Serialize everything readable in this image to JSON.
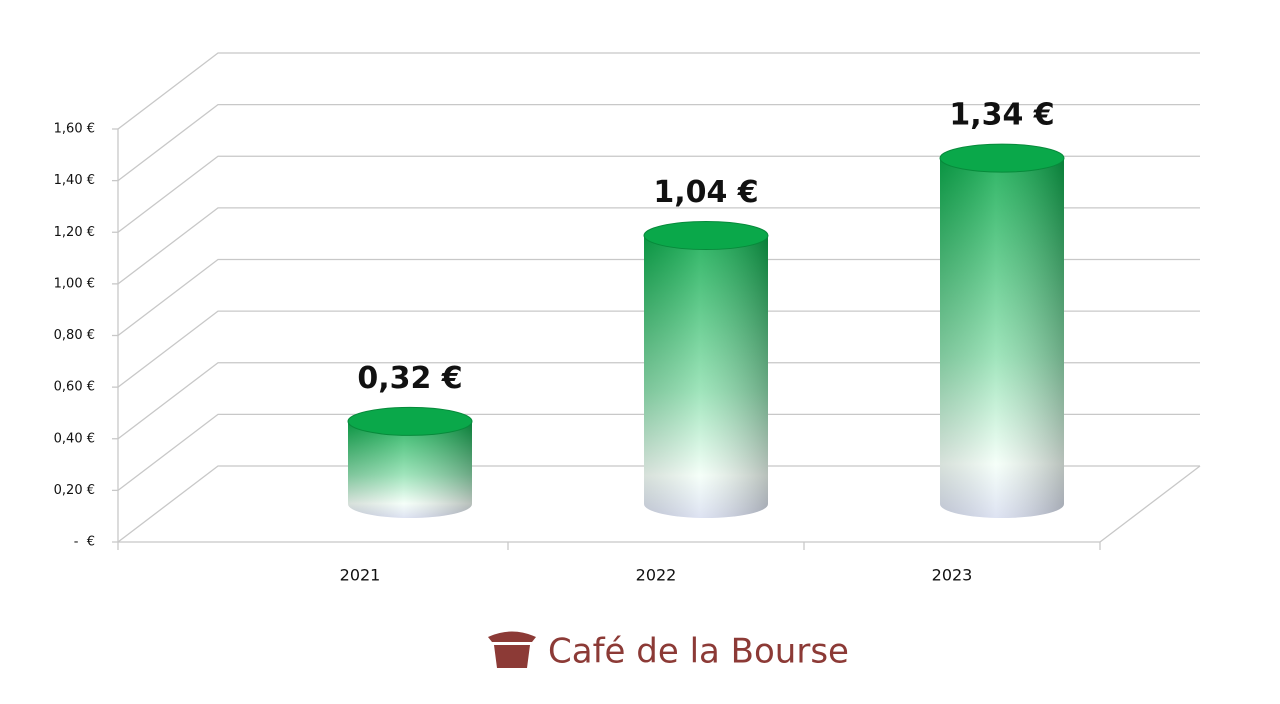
{
  "chart_data": {
    "type": "bar",
    "categories": [
      "2021",
      "2022",
      "2023"
    ],
    "values": [
      0.32,
      1.04,
      1.34
    ],
    "value_labels": [
      "0,32 €",
      "1,04 €",
      "1,34 €"
    ],
    "color": "#0aa84a",
    "ylim": [
      0,
      1.6
    ],
    "yticks": [
      {
        "value": 0,
        "label": "-  €"
      },
      {
        "value": 0.2,
        "label": "0,20 €"
      },
      {
        "value": 0.4,
        "label": "0,40 €"
      },
      {
        "value": 0.6,
        "label": "0,60 €"
      },
      {
        "value": 0.8,
        "label": "0,80 €"
      },
      {
        "value": 1.0,
        "label": "1,00 €"
      },
      {
        "value": 1.2,
        "label": "1,20 €"
      },
      {
        "value": 1.4,
        "label": "1,40 €"
      },
      {
        "value": 1.6,
        "label": "1,60 €"
      }
    ],
    "grid": true
  },
  "footer": {
    "brand": "Café de la Bourse"
  }
}
